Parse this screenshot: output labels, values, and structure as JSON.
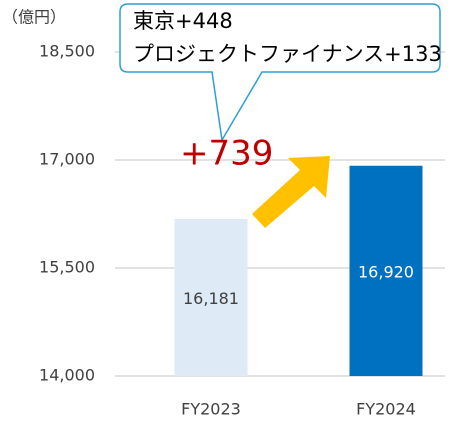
{
  "chart_data": {
    "type": "bar",
    "unit_label": "（億円）",
    "annotations": [
      "東京+448",
      "プロジェクトファイナンス+133",
      "+739"
    ],
    "categories": [
      "FY2023",
      "FY2024"
    ],
    "values": [
      16181,
      16920
    ],
    "value_labels": [
      "16,181",
      "16,920"
    ],
    "colors": [
      "#deeaf6",
      "#0070c0"
    ],
    "ylim": [
      14000,
      18500
    ],
    "yticks": [
      {
        "value": 14000,
        "label": "14,000"
      },
      {
        "value": 15500,
        "label": "15,500"
      },
      {
        "value": 17000,
        "label": "17,000"
      },
      {
        "value": 18500,
        "label": "18,500"
      }
    ],
    "grid": true
  }
}
